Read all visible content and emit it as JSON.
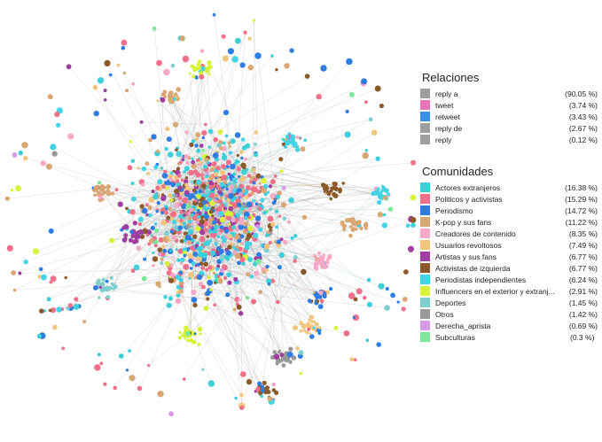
{
  "relaciones": {
    "title": "Relaciones",
    "items": [
      {
        "label": "reply a",
        "pct": "(90.05 %)",
        "color": "#9e9e9e"
      },
      {
        "label": "tweet",
        "pct": "(3.74 %)",
        "color": "#e875b8"
      },
      {
        "label": "retweet",
        "pct": "(3.43 %)",
        "color": "#3d8ee6"
      },
      {
        "label": "reply de",
        "pct": "(2.67 %)",
        "color": "#9e9e9e"
      },
      {
        "label": "reply",
        "pct": "(0.12 %)",
        "color": "#9e9e9e"
      }
    ]
  },
  "comunidades": {
    "title": "Comunidades",
    "items": [
      {
        "label": "Actores extranjeros",
        "pct": "(16.38 %)",
        "color": "#3fcfd8"
      },
      {
        "label": "Politicos y activistas",
        "pct": "(15.29 %)",
        "color": "#f0708a"
      },
      {
        "label": "Periodismo",
        "pct": "(14.72 %)",
        "color": "#2f7de0"
      },
      {
        "label": "K-pop y sus fans",
        "pct": "(11.22 %)",
        "color": "#d9a774"
      },
      {
        "label": "Creadores de contenido",
        "pct": "(8.35 %)",
        "color": "#f7a8c6"
      },
      {
        "label": "Usuarios revoltosos",
        "pct": "(7.49 %)",
        "color": "#f2c57c"
      },
      {
        "label": "Artistas y sus fans",
        "pct": "(6.77 %)",
        "color": "#a03fa0"
      },
      {
        "label": "Activistas de izquierda",
        "pct": "(6.77 %)",
        "color": "#8a5a2b"
      },
      {
        "label": "Periodistas independientes",
        "pct": "(6.24 %)",
        "color": "#45d3e6"
      },
      {
        "label": "Influencers en el exterior y extranj...",
        "pct": "(2.91 %)",
        "color": "#d8f23a"
      },
      {
        "label": "Deportes",
        "pct": "(1.45 %)",
        "color": "#7fcfcf"
      },
      {
        "label": "Otros",
        "pct": "(1.42 %)",
        "color": "#9a9a9a"
      },
      {
        "label": "Derecha_aprista",
        "pct": "(0.69 %)",
        "color": "#d79ae6"
      },
      {
        "label": "Subculturas",
        "pct": "(0.3 %)",
        "color": "#7ee89a"
      }
    ]
  }
}
